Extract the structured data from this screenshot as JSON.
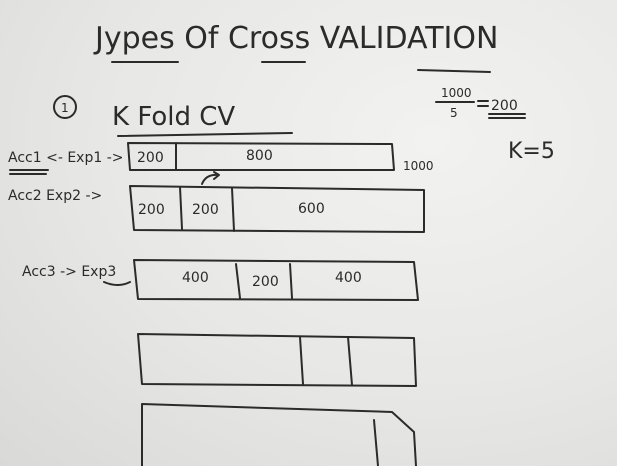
{
  "title": "Jypes Of Cross VALIDATION",
  "section": {
    "number": "1",
    "heading": "K Fold CV"
  },
  "calc": {
    "numerator": "1000",
    "denominator": "5",
    "result": "200",
    "k_label": "K=5"
  },
  "total_label": "1000",
  "experiments": [
    {
      "label": "Acc1 <- Exp1 ->",
      "segments": [
        "200",
        "800"
      ]
    },
    {
      "label": "Acc2 Exp2 ->",
      "segments": [
        "200",
        "200",
        "600"
      ]
    },
    {
      "label": "Acc3 -> Exp3",
      "segments": [
        "400",
        "200",
        "400"
      ]
    }
  ],
  "colors": {
    "ink": "#2b2b2b",
    "board": "#ececea"
  }
}
